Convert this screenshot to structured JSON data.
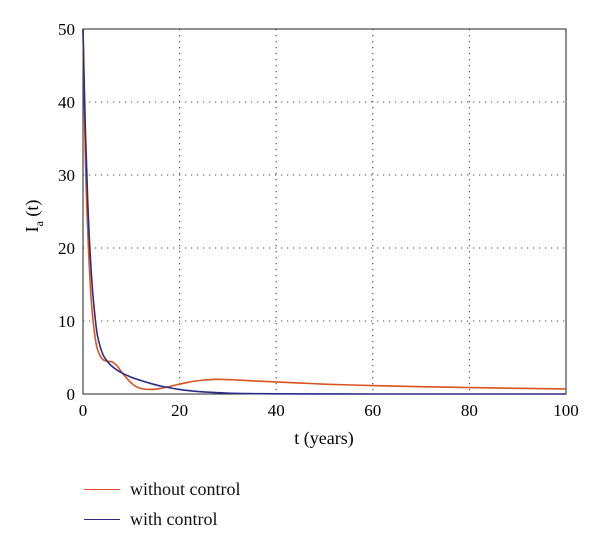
{
  "chart_data": {
    "type": "line",
    "xlabel": "t (years)",
    "ylabel_main": "I",
    "ylabel_sub": "a",
    "ylabel_tail": " (t)",
    "xlim": [
      0,
      100
    ],
    "ylim": [
      0,
      50
    ],
    "xticks": [
      0,
      20,
      40,
      60,
      80,
      100
    ],
    "yticks": [
      0,
      10,
      20,
      30,
      40,
      50
    ],
    "grid": true,
    "legend_position": "below",
    "series": [
      {
        "name": "without control",
        "color": "#d9541e",
        "x": [
          0,
          0.5,
          1,
          1.5,
          2,
          2.5,
          3,
          4,
          5,
          6,
          7,
          8,
          9,
          10,
          11,
          12,
          13,
          14,
          15,
          17,
          19,
          21,
          23,
          25,
          27,
          29,
          31,
          33,
          35,
          40,
          45,
          50,
          60,
          70,
          80,
          90,
          100
        ],
        "y": [
          50,
          32,
          22,
          15,
          10.5,
          7.8,
          6.1,
          4.8,
          4.5,
          4.4,
          3.9,
          3.0,
          2.2,
          1.5,
          1.0,
          0.75,
          0.65,
          0.63,
          0.66,
          0.9,
          1.2,
          1.5,
          1.75,
          1.9,
          2.0,
          2.0,
          1.95,
          1.88,
          1.8,
          1.65,
          1.5,
          1.35,
          1.15,
          1.0,
          0.88,
          0.78,
          0.7
        ]
      },
      {
        "name": "with control",
        "color": "#2b2b8a",
        "x": [
          0,
          0.5,
          1,
          1.5,
          2,
          2.5,
          3,
          4,
          5,
          6,
          7,
          8,
          10,
          12,
          14,
          16,
          18,
          20,
          22,
          25,
          30,
          35,
          40,
          50,
          60,
          70,
          80,
          90,
          100
        ],
        "y": [
          50,
          36,
          26,
          19,
          14,
          10.5,
          8,
          5.6,
          4.5,
          3.8,
          3.3,
          2.9,
          2.3,
          1.85,
          1.45,
          1.1,
          0.85,
          0.62,
          0.45,
          0.28,
          0.12,
          0.05,
          0.02,
          0.01,
          0,
          0,
          0,
          0,
          0
        ]
      }
    ]
  }
}
